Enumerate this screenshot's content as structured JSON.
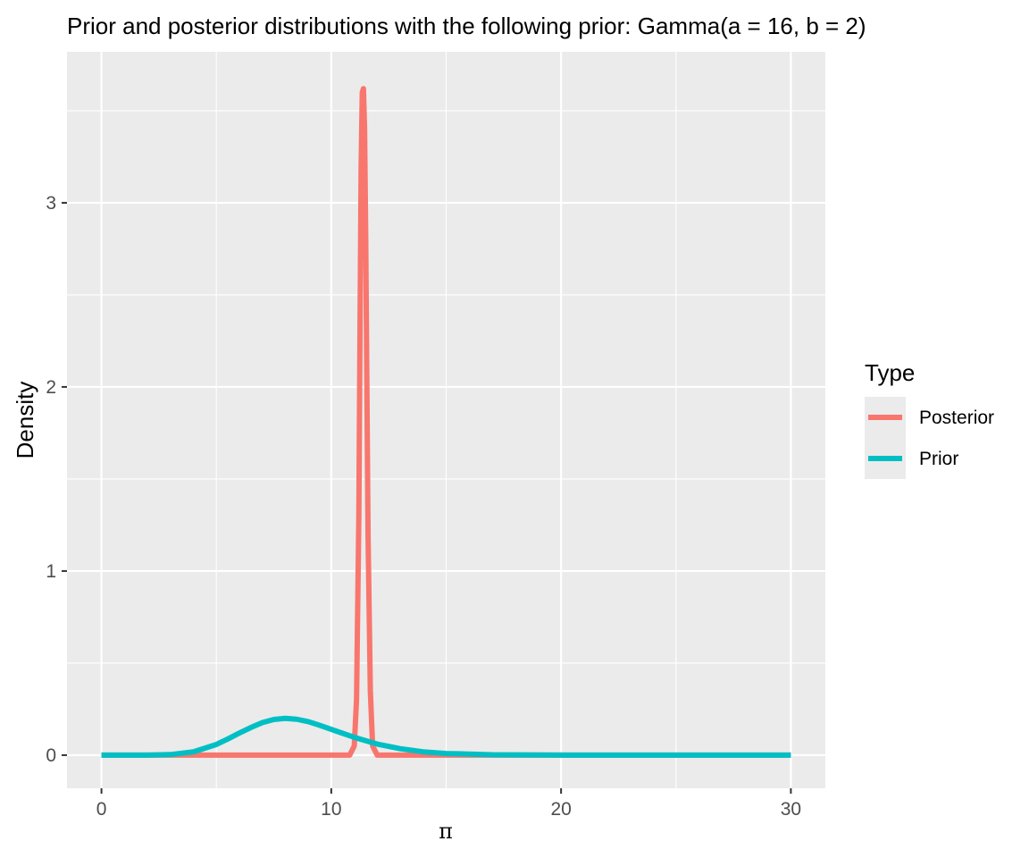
{
  "chart_data": {
    "type": "line",
    "title": "Prior and posterior distributions with the following prior: Gamma(a = 16, b = 2)",
    "xlabel": "π",
    "ylabel": "Density",
    "xlim": [
      0,
      30
    ],
    "ylim": [
      0,
      3.65
    ],
    "x_ticks": [
      0,
      10,
      20,
      30
    ],
    "x_tick_labels": [
      "0",
      "10",
      "20",
      "30"
    ],
    "y_ticks": [
      0,
      1,
      2,
      3
    ],
    "y_tick_labels": [
      "0",
      "1",
      "2",
      "3"
    ],
    "grid": true,
    "legend": {
      "title": "Type",
      "placement": "right",
      "entries": [
        "Posterior",
        "Prior"
      ]
    },
    "series": [
      {
        "name": "Posterior",
        "color": "#F8766D",
        "x": [
          0,
          10.5,
          10.8,
          11.0,
          11.1,
          11.2,
          11.25,
          11.3,
          11.35,
          11.4,
          11.45,
          11.5,
          11.55,
          11.6,
          11.7,
          11.8,
          12.0,
          12.5,
          30
        ],
        "y": [
          0,
          0,
          0.0,
          0.05,
          0.3,
          1.3,
          2.3,
          3.2,
          3.6,
          3.62,
          3.4,
          2.8,
          2.0,
          1.2,
          0.35,
          0.05,
          0,
          0,
          0
        ]
      },
      {
        "name": "Prior",
        "color": "#00BFC4",
        "x": [
          0,
          2,
          3,
          4,
          5,
          5.5,
          6,
          6.5,
          7,
          7.5,
          8,
          8.5,
          9,
          9.5,
          10,
          11,
          12,
          13,
          14,
          15,
          17,
          20,
          25,
          30
        ],
        "y": [
          0,
          0.0001,
          0.003,
          0.018,
          0.058,
          0.088,
          0.12,
          0.15,
          0.177,
          0.194,
          0.2,
          0.195,
          0.182,
          0.162,
          0.14,
          0.097,
          0.06,
          0.035,
          0.018,
          0.009,
          0.002,
          0.0002,
          0,
          0
        ]
      }
    ]
  }
}
